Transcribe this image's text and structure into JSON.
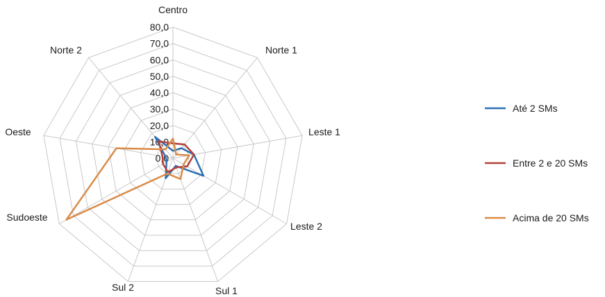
{
  "chart_data": {
    "type": "radar",
    "title": "",
    "categories": [
      "Centro",
      "Norte 1",
      "Leste 1",
      "Leste 2",
      "Sul 1",
      "Sul 2",
      "Sudoeste",
      "Oeste",
      "Norte 2"
    ],
    "ticks": [
      "0,0",
      "10,0",
      "20,0",
      "30,0",
      "40,0",
      "50,0",
      "60,0",
      "70,0",
      "80,0"
    ],
    "rlim": [
      0,
      80
    ],
    "grid": true,
    "legend_position": "right",
    "series": [
      {
        "name": "Até 2 SMs",
        "color": "#2e6fb4",
        "values": [
          4.5,
          8.0,
          13.0,
          21.5,
          5.0,
          13.0,
          4.5,
          4.5,
          17.0
        ]
      },
      {
        "name": "Entre 2 e 20 SMs",
        "color": "#b2403a",
        "values": [
          9.0,
          11.0,
          13.0,
          10.0,
          6.0,
          9.0,
          7.0,
          6.5,
          13.5
        ]
      },
      {
        "name": "Acima de 20 SMs",
        "color": "#d98b47",
        "values": [
          12.0,
          3.0,
          10.0,
          7.5,
          13.5,
          10.0,
          75.0,
          35.0,
          7.0
        ]
      }
    ]
  }
}
